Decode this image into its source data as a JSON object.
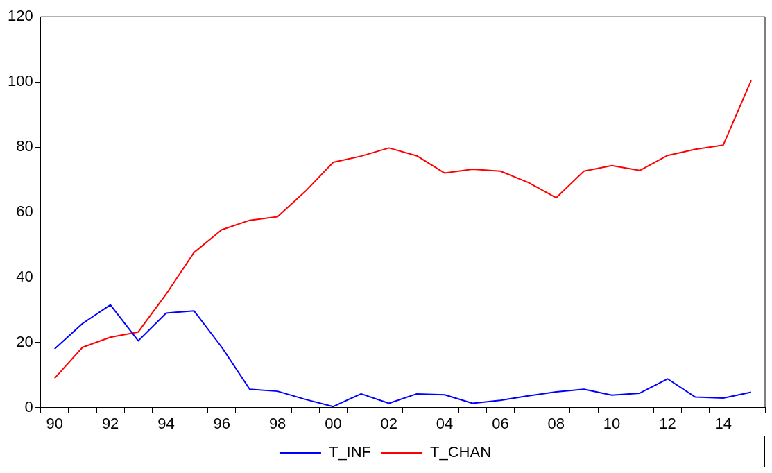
{
  "chart_data": {
    "type": "line",
    "categories": [
      "90",
      null,
      "92",
      null,
      "94",
      null,
      "96",
      null,
      "98",
      null,
      "00",
      null,
      "02",
      null,
      "04",
      null,
      "06",
      null,
      "08",
      null,
      "10",
      null,
      "12",
      null,
      "14",
      null
    ],
    "series": [
      {
        "name": "T_INF",
        "color": "#0000ff",
        "values": [
          18,
          25.8,
          31.5,
          20.5,
          29,
          29.7,
          18.5,
          5.6,
          5,
          2.5,
          0.3,
          4.2,
          1.3,
          4.2,
          3.9,
          1.3,
          2.2,
          3.6,
          4.8,
          5.6,
          3.8,
          4.4,
          8.8,
          3.2,
          2.9,
          4.7
        ]
      },
      {
        "name": "T_CHAN",
        "color": "#ff0000",
        "values": [
          9,
          18.5,
          21.6,
          23.2,
          34.8,
          47.6,
          54.6,
          57.5,
          58.6,
          66.4,
          75.3,
          77.2,
          79.7,
          77.3,
          72,
          73.2,
          72.6,
          69.1,
          64.4,
          72.6,
          74.3,
          72.8,
          77.4,
          79.3,
          80.6,
          100.4
        ]
      }
    ],
    "ylim": [
      0,
      120
    ],
    "yticks": [
      0,
      20,
      40,
      60,
      80,
      100,
      120
    ],
    "grid": false,
    "legend": "bottom",
    "marker": "none",
    "line_style": "solid"
  }
}
